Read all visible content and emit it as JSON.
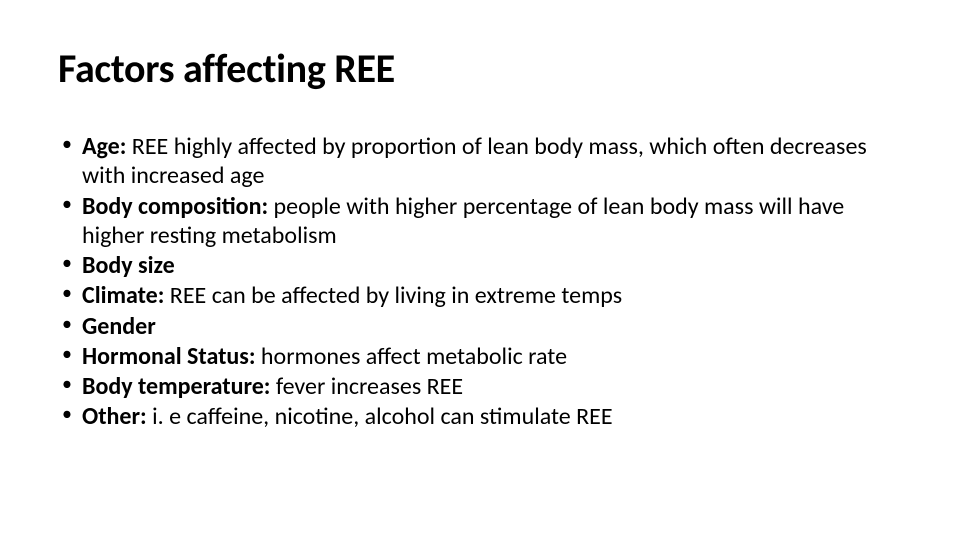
{
  "slide": {
    "title": "Factors affecting REE",
    "title_fontsize": 40,
    "body_fontsize": 24,
    "background_color": "#ffffff",
    "text_color": "#000000",
    "bullets": [
      {
        "label": "Age:",
        "text": " REE highly affected by proportion of lean body mass, which often decreases with increased age"
      },
      {
        "label": "Body composition:",
        "text": " people with higher percentage of lean body mass will have higher resting metabolism"
      },
      {
        "label": "Body size",
        "text": ""
      },
      {
        "label": "Climate:",
        "text": " REE can be affected by living in extreme temps"
      },
      {
        "label": "Gender",
        "text": ""
      },
      {
        "label": "Hormonal Status:",
        "text": " hormones affect metabolic rate"
      },
      {
        "label": "Body temperature:",
        "text": " fever increases REE"
      },
      {
        "label": "Other:",
        "text": " i. e caffeine, nicotine, alcohol can stimulate REE"
      }
    ]
  }
}
